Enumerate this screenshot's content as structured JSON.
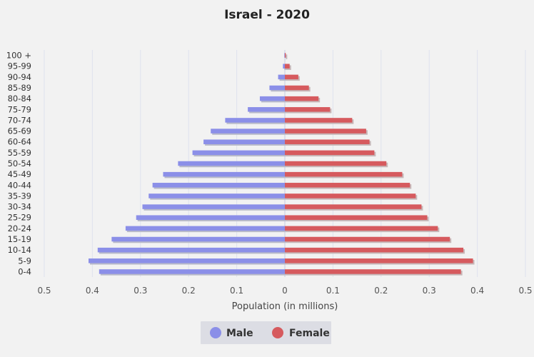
{
  "chart_data": {
    "type": "bar",
    "orientation": "horizontal",
    "layout": "population-pyramid",
    "title": "Israel - 2020",
    "xlabel": "Population (in millions)",
    "ylabel": "",
    "xlim": [
      -0.5,
      0.5
    ],
    "x_ticks": [
      "0.5",
      "0.4",
      "0.3",
      "0.2",
      "0.1",
      "0",
      "0.1",
      "0.2",
      "0.3",
      "0.4",
      "0.5"
    ],
    "x_tick_values": [
      -0.5,
      -0.4,
      -0.3,
      -0.2,
      -0.1,
      0,
      0.1,
      0.2,
      0.3,
      0.4,
      0.5
    ],
    "categories": [
      "100 +",
      "95-99",
      "90-94",
      "85-89",
      "80-84",
      "75-79",
      "70-74",
      "65-69",
      "60-64",
      "55-59",
      "50-54",
      "45-49",
      "40-44",
      "35-39",
      "30-34",
      "25-29",
      "20-24",
      "15-19",
      "10-14",
      "5-9",
      "0-4"
    ],
    "grid": true,
    "legend_position": "bottom-center",
    "series": [
      {
        "name": "Male",
        "color": "#8b8fe8",
        "values": [
          0.001,
          0.004,
          0.014,
          0.032,
          0.052,
          0.077,
          0.124,
          0.154,
          0.169,
          0.192,
          0.222,
          0.253,
          0.275,
          0.283,
          0.296,
          0.309,
          0.331,
          0.36,
          0.389,
          0.408,
          0.386
        ]
      },
      {
        "name": "Female",
        "color": "#d65a5e",
        "values": [
          0.002,
          0.01,
          0.028,
          0.05,
          0.07,
          0.094,
          0.14,
          0.169,
          0.176,
          0.186,
          0.211,
          0.244,
          0.26,
          0.272,
          0.284,
          0.296,
          0.318,
          0.343,
          0.371,
          0.391,
          0.366
        ]
      }
    ]
  }
}
